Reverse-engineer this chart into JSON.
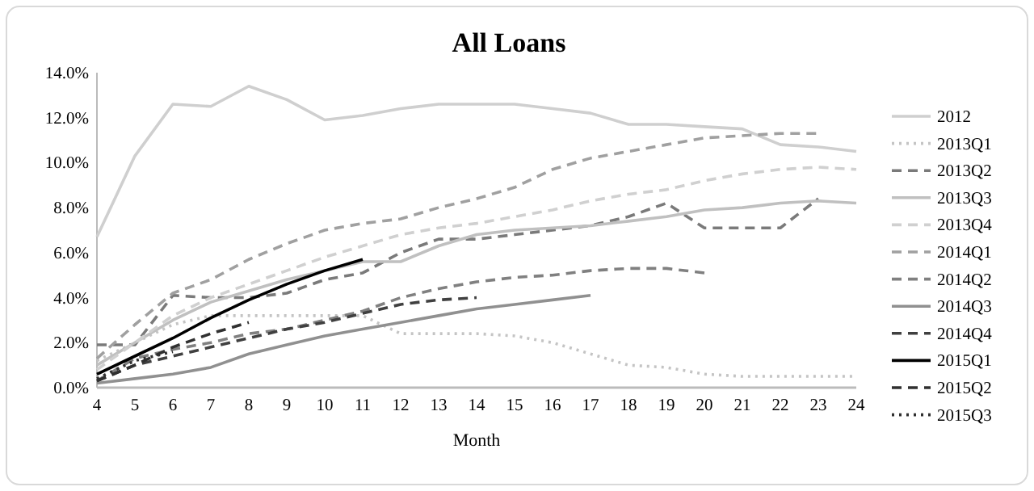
{
  "chart_data": {
    "type": "line",
    "title": "All Loans",
    "xlabel": "Month",
    "x": [
      4,
      5,
      6,
      7,
      8,
      9,
      10,
      11,
      12,
      13,
      14,
      15,
      16,
      17,
      18,
      19,
      20,
      21,
      22,
      23,
      24
    ],
    "xlim": [
      4,
      24
    ],
    "xticks": [
      4,
      5,
      6,
      7,
      8,
      9,
      10,
      11,
      12,
      13,
      14,
      15,
      16,
      17,
      18,
      19,
      20,
      21,
      22,
      23,
      24
    ],
    "ylim": [
      0,
      14
    ],
    "yticks": [
      {
        "value": 0,
        "label": "0.0%"
      },
      {
        "value": 2,
        "label": "2.0%"
      },
      {
        "value": 4,
        "label": "4.0%"
      },
      {
        "value": 6,
        "label": "6.0%"
      },
      {
        "value": 8,
        "label": "8.0%"
      },
      {
        "value": 10,
        "label": "10.0%"
      },
      {
        "value": 12,
        "label": "12.0%"
      },
      {
        "value": 14,
        "label": "14.0%"
      }
    ],
    "grid": false,
    "legend": "right",
    "marker": "none",
    "series": [
      {
        "name": "2012",
        "color": "#cfcfcf",
        "line_style": "solid",
        "values": [
          6.7,
          10.3,
          12.6,
          12.5,
          13.4,
          12.8,
          11.9,
          12.1,
          12.4,
          12.6,
          12.6,
          12.6,
          12.4,
          12.2,
          11.7,
          11.7,
          11.6,
          11.5,
          10.8,
          10.7,
          10.5
        ]
      },
      {
        "name": "2013Q1",
        "color": "#c4c4c4",
        "line_style": "dotted",
        "values": [
          1.2,
          2.0,
          2.8,
          3.2,
          3.2,
          3.2,
          3.2,
          3.2,
          2.4,
          2.4,
          2.4,
          2.3,
          2.0,
          1.5,
          1.0,
          0.9,
          0.6,
          0.5,
          0.5,
          0.5,
          0.5
        ]
      },
      {
        "name": "2013Q2",
        "color": "#7a7a7a",
        "line_style": "dashed",
        "values": [
          1.9,
          1.9,
          4.1,
          4.0,
          4.0,
          4.2,
          4.8,
          5.1,
          6.0,
          6.6,
          6.6,
          6.8,
          7.0,
          7.2,
          7.6,
          8.2,
          7.1,
          7.1,
          7.1,
          8.4,
          null
        ]
      },
      {
        "name": "2013Q3",
        "color": "#c0c0c0",
        "line_style": "solid",
        "values": [
          1.0,
          2.0,
          3.0,
          3.8,
          4.3,
          4.8,
          5.2,
          5.6,
          5.6,
          6.3,
          6.8,
          7.0,
          7.1,
          7.2,
          7.4,
          7.6,
          7.9,
          8.0,
          8.2,
          8.3,
          8.2
        ]
      },
      {
        "name": "2013Q4",
        "color": "#d0d0d0",
        "line_style": "dashed",
        "values": [
          0.8,
          2.0,
          3.2,
          4.0,
          4.6,
          5.2,
          5.8,
          6.3,
          6.8,
          7.1,
          7.3,
          7.6,
          7.9,
          8.3,
          8.6,
          8.8,
          9.2,
          9.5,
          9.7,
          9.8,
          9.7
        ]
      },
      {
        "name": "2014Q1",
        "color": "#a0a0a0",
        "line_style": "dashed",
        "values": [
          1.3,
          2.8,
          4.2,
          4.8,
          5.7,
          6.4,
          7.0,
          7.3,
          7.5,
          8.0,
          8.4,
          8.9,
          9.7,
          10.2,
          10.5,
          10.8,
          11.1,
          11.2,
          11.3,
          11.3,
          null
        ]
      },
      {
        "name": "2014Q2",
        "color": "#808080",
        "line_style": "dashed",
        "values": [
          0.3,
          1.3,
          1.7,
          2.0,
          2.4,
          2.6,
          3.0,
          3.4,
          4.0,
          4.4,
          4.7,
          4.9,
          5.0,
          5.2,
          5.3,
          5.3,
          5.1,
          null,
          null,
          null,
          null
        ]
      },
      {
        "name": "2014Q3",
        "color": "#909090",
        "line_style": "solid",
        "values": [
          0.2,
          0.4,
          0.6,
          0.9,
          1.5,
          1.9,
          2.3,
          2.6,
          2.9,
          3.2,
          3.5,
          3.7,
          3.9,
          4.1,
          null,
          null,
          null,
          null,
          null,
          null,
          null
        ]
      },
      {
        "name": "2014Q4",
        "color": "#404040",
        "line_style": "dashed",
        "values": [
          0.3,
          1.0,
          1.4,
          1.8,
          2.2,
          2.6,
          2.9,
          3.3,
          3.7,
          3.9,
          4.0,
          null,
          null,
          null,
          null,
          null,
          null,
          null,
          null,
          null,
          null
        ]
      },
      {
        "name": "2015Q1",
        "color": "#000000",
        "line_style": "solid",
        "values": [
          0.6,
          1.4,
          2.2,
          3.1,
          3.9,
          4.6,
          5.2,
          5.7,
          null,
          null,
          null,
          null,
          null,
          null,
          null,
          null,
          null,
          null,
          null,
          null,
          null
        ]
      },
      {
        "name": "2015Q2",
        "color": "#303030",
        "line_style": "dashed",
        "values": [
          0.3,
          1.0,
          1.8,
          2.4,
          2.9,
          null,
          null,
          null,
          null,
          null,
          null,
          null,
          null,
          null,
          null,
          null,
          null,
          null,
          null,
          null,
          null
        ]
      },
      {
        "name": "2015Q3",
        "color": "#303030",
        "line_style": "dotted",
        "values": [
          0.4,
          1.2,
          1.6,
          null,
          null,
          null,
          null,
          null,
          null,
          null,
          null,
          null,
          null,
          null,
          null,
          null,
          null,
          null,
          null,
          null,
          null
        ]
      }
    ]
  }
}
